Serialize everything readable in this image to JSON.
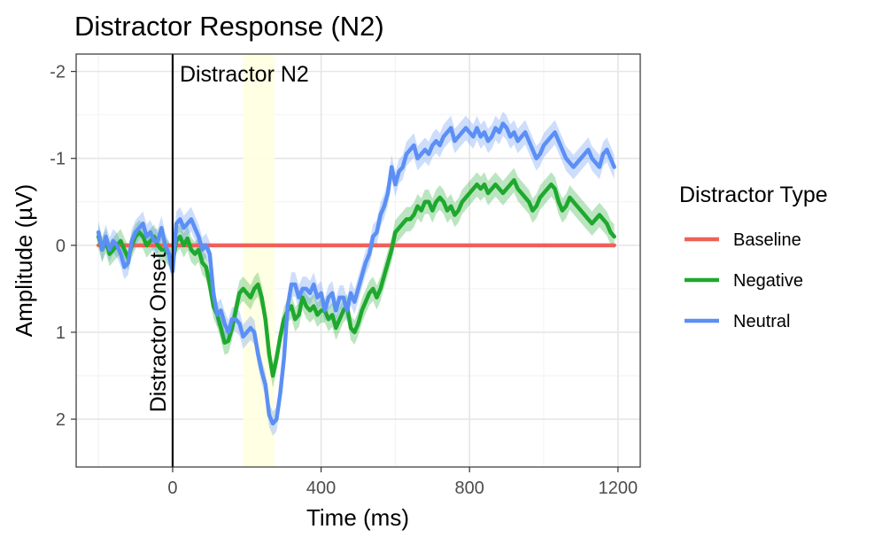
{
  "chart_data": {
    "type": "line",
    "title": "Distractor Response (N2)",
    "xlabel": "Time (ms)",
    "ylabel": "Amplitude (µV)",
    "xlim": [
      -260,
      1260
    ],
    "ylim": [
      2.55,
      -2.2
    ],
    "y_reversed": true,
    "x_ticks": [
      0,
      400,
      800,
      1200
    ],
    "x_tick_labels": [
      "0",
      "400",
      "800",
      "1200"
    ],
    "x_minor_ticks": [
      -200,
      200,
      600,
      1000
    ],
    "y_ticks": [
      -2,
      -1,
      0,
      1,
      2
    ],
    "y_tick_labels": [
      "-2",
      "-1",
      "0",
      "1",
      "2"
    ],
    "y_minor_ticks": [
      -1.5,
      -0.5,
      0.5,
      1.5
    ],
    "grid": true,
    "legend": {
      "title": "Distractor Type",
      "placement": "right"
    },
    "highlight": {
      "x_range": [
        190,
        275
      ],
      "color": "#ffffe0",
      "label": "Distractor N2"
    },
    "vline": {
      "x": 0,
      "label": "Distractor Onset",
      "color": "#000000"
    },
    "x": [
      -200,
      -190,
      -180,
      -170,
      -160,
      -150,
      -140,
      -130,
      -120,
      -110,
      -100,
      -90,
      -80,
      -70,
      -60,
      -50,
      -40,
      -30,
      -20,
      -10,
      0,
      10,
      20,
      30,
      40,
      50,
      60,
      70,
      80,
      90,
      100,
      110,
      120,
      130,
      140,
      150,
      160,
      170,
      180,
      190,
      200,
      210,
      220,
      230,
      240,
      250,
      260,
      270,
      280,
      290,
      300,
      310,
      320,
      330,
      340,
      350,
      360,
      370,
      380,
      390,
      400,
      410,
      420,
      430,
      440,
      450,
      460,
      470,
      480,
      490,
      500,
      510,
      520,
      530,
      540,
      550,
      560,
      570,
      580,
      590,
      600,
      610,
      620,
      630,
      640,
      650,
      660,
      670,
      680,
      690,
      700,
      710,
      720,
      730,
      740,
      750,
      760,
      770,
      780,
      790,
      800,
      810,
      820,
      830,
      840,
      850,
      860,
      870,
      880,
      890,
      900,
      910,
      920,
      930,
      940,
      950,
      960,
      970,
      980,
      990,
      1000,
      1010,
      1020,
      1030,
      1040,
      1050,
      1060,
      1070,
      1080,
      1090,
      1100,
      1110,
      1120,
      1130,
      1140,
      1150,
      1160,
      1170,
      1180,
      1190
    ],
    "series": [
      {
        "name": "Baseline",
        "color": "#f0605a",
        "values": [
          0,
          0,
          0,
          0,
          0,
          0,
          0,
          0,
          0,
          0,
          0,
          0,
          0,
          0,
          0,
          0,
          0,
          0,
          0,
          0,
          0,
          0,
          0,
          0,
          0,
          0,
          0,
          0,
          0,
          0,
          0,
          0,
          0,
          0,
          0,
          0,
          0,
          0,
          0,
          0,
          0,
          0,
          0,
          0,
          0,
          0,
          0,
          0,
          0,
          0,
          0,
          0,
          0,
          0,
          0,
          0,
          0,
          0,
          0,
          0,
          0,
          0,
          0,
          0,
          0,
          0,
          0,
          0,
          0,
          0,
          0,
          0,
          0,
          0,
          0,
          0,
          0,
          0,
          0,
          0,
          0,
          0,
          0,
          0,
          0,
          0,
          0,
          0,
          0,
          0,
          0,
          0,
          0,
          0,
          0,
          0,
          0,
          0,
          0,
          0,
          0,
          0,
          0,
          0,
          0,
          0,
          0,
          0,
          0,
          0,
          0,
          0,
          0,
          0,
          0,
          0,
          0,
          0,
          0,
          0,
          0,
          0,
          0,
          0,
          0,
          0,
          0,
          0,
          0,
          0,
          0,
          0,
          0,
          0,
          0,
          0,
          0,
          0,
          0,
          0
        ],
        "ci": 0
      },
      {
        "name": "Negative",
        "color": "#1fa82e",
        "band_color": "#1fa82e",
        "ci": 0.14,
        "values": [
          -0.1,
          0.05,
          -0.05,
          0.1,
          0.05,
          0.0,
          -0.05,
          0.05,
          0.15,
          0.0,
          -0.1,
          -0.15,
          -0.1,
          0.0,
          -0.05,
          -0.1,
          0.0,
          0.05,
          0.05,
          0.1,
          0.2,
          -0.05,
          -0.1,
          0.0,
          -0.08,
          0.05,
          0.1,
          0.05,
          0.2,
          0.25,
          0.45,
          0.7,
          0.8,
          0.95,
          1.12,
          1.1,
          0.95,
          0.75,
          0.55,
          0.5,
          0.55,
          0.6,
          0.5,
          0.45,
          0.6,
          0.85,
          1.25,
          1.5,
          1.3,
          1.05,
          0.85,
          0.75,
          0.7,
          0.85,
          0.8,
          0.6,
          0.7,
          0.75,
          0.7,
          0.8,
          0.75,
          0.75,
          0.85,
          0.8,
          0.95,
          0.85,
          0.75,
          0.7,
          0.95,
          1.0,
          0.9,
          0.75,
          0.65,
          0.55,
          0.5,
          0.6,
          0.5,
          0.35,
          0.2,
          0.05,
          -0.15,
          -0.2,
          -0.25,
          -0.3,
          -0.3,
          -0.35,
          -0.45,
          -0.4,
          -0.5,
          -0.5,
          -0.4,
          -0.5,
          -0.55,
          -0.5,
          -0.4,
          -0.45,
          -0.35,
          -0.4,
          -0.5,
          -0.55,
          -0.6,
          -0.65,
          -0.7,
          -0.65,
          -0.7,
          -0.6,
          -0.65,
          -0.7,
          -0.65,
          -0.6,
          -0.65,
          -0.7,
          -0.75,
          -0.65,
          -0.6,
          -0.55,
          -0.5,
          -0.4,
          -0.45,
          -0.55,
          -0.6,
          -0.65,
          -0.7,
          -0.65,
          -0.5,
          -0.4,
          -0.45,
          -0.55,
          -0.5,
          -0.45,
          -0.4,
          -0.35,
          -0.3,
          -0.25,
          -0.3,
          -0.35,
          -0.3,
          -0.25,
          -0.15,
          -0.1
        ]
      },
      {
        "name": "Neutral",
        "color": "#5b8ff5",
        "band_color": "#5b8ff5",
        "ci": 0.14,
        "values": [
          -0.15,
          0.05,
          -0.1,
          0.05,
          -0.05,
          0.0,
          0.1,
          0.25,
          0.2,
          -0.05,
          -0.15,
          -0.2,
          -0.25,
          -0.1,
          -0.15,
          -0.05,
          -0.05,
          -0.2,
          0.0,
          0.1,
          0.3,
          -0.25,
          -0.3,
          -0.2,
          -0.25,
          -0.3,
          -0.2,
          -0.1,
          0.05,
          0.0,
          0.1,
          0.55,
          0.8,
          0.75,
          0.9,
          1.0,
          0.85,
          0.85,
          0.9,
          1.05,
          1.0,
          0.95,
          1.0,
          1.25,
          1.45,
          1.6,
          1.95,
          2.05,
          2.0,
          1.7,
          1.3,
          0.7,
          0.45,
          0.45,
          0.6,
          0.5,
          0.5,
          0.55,
          0.45,
          0.6,
          0.55,
          0.75,
          0.6,
          0.55,
          0.75,
          0.6,
          0.6,
          0.75,
          0.55,
          0.65,
          0.5,
          0.35,
          0.2,
          0.1,
          -0.1,
          -0.15,
          -0.35,
          -0.45,
          -0.6,
          -0.9,
          -0.7,
          -0.85,
          -0.9,
          -1.05,
          -1.1,
          -1.15,
          -1.0,
          -1.05,
          -1.1,
          -1.05,
          -1.15,
          -1.2,
          -1.15,
          -1.25,
          -1.3,
          -1.35,
          -1.2,
          -1.25,
          -1.3,
          -1.35,
          -1.3,
          -1.25,
          -1.35,
          -1.25,
          -1.3,
          -1.2,
          -1.25,
          -1.35,
          -1.3,
          -1.4,
          -1.35,
          -1.25,
          -1.3,
          -1.2,
          -1.25,
          -1.3,
          -1.2,
          -1.1,
          -1.0,
          -1.05,
          -1.15,
          -1.2,
          -1.25,
          -1.3,
          -1.2,
          -1.1,
          -1.0,
          -0.95,
          -0.9,
          -0.95,
          -1.0,
          -1.05,
          -1.1,
          -1.0,
          -0.95,
          -0.9,
          -1.05,
          -1.1,
          -1.0,
          -0.9
        ]
      }
    ]
  }
}
